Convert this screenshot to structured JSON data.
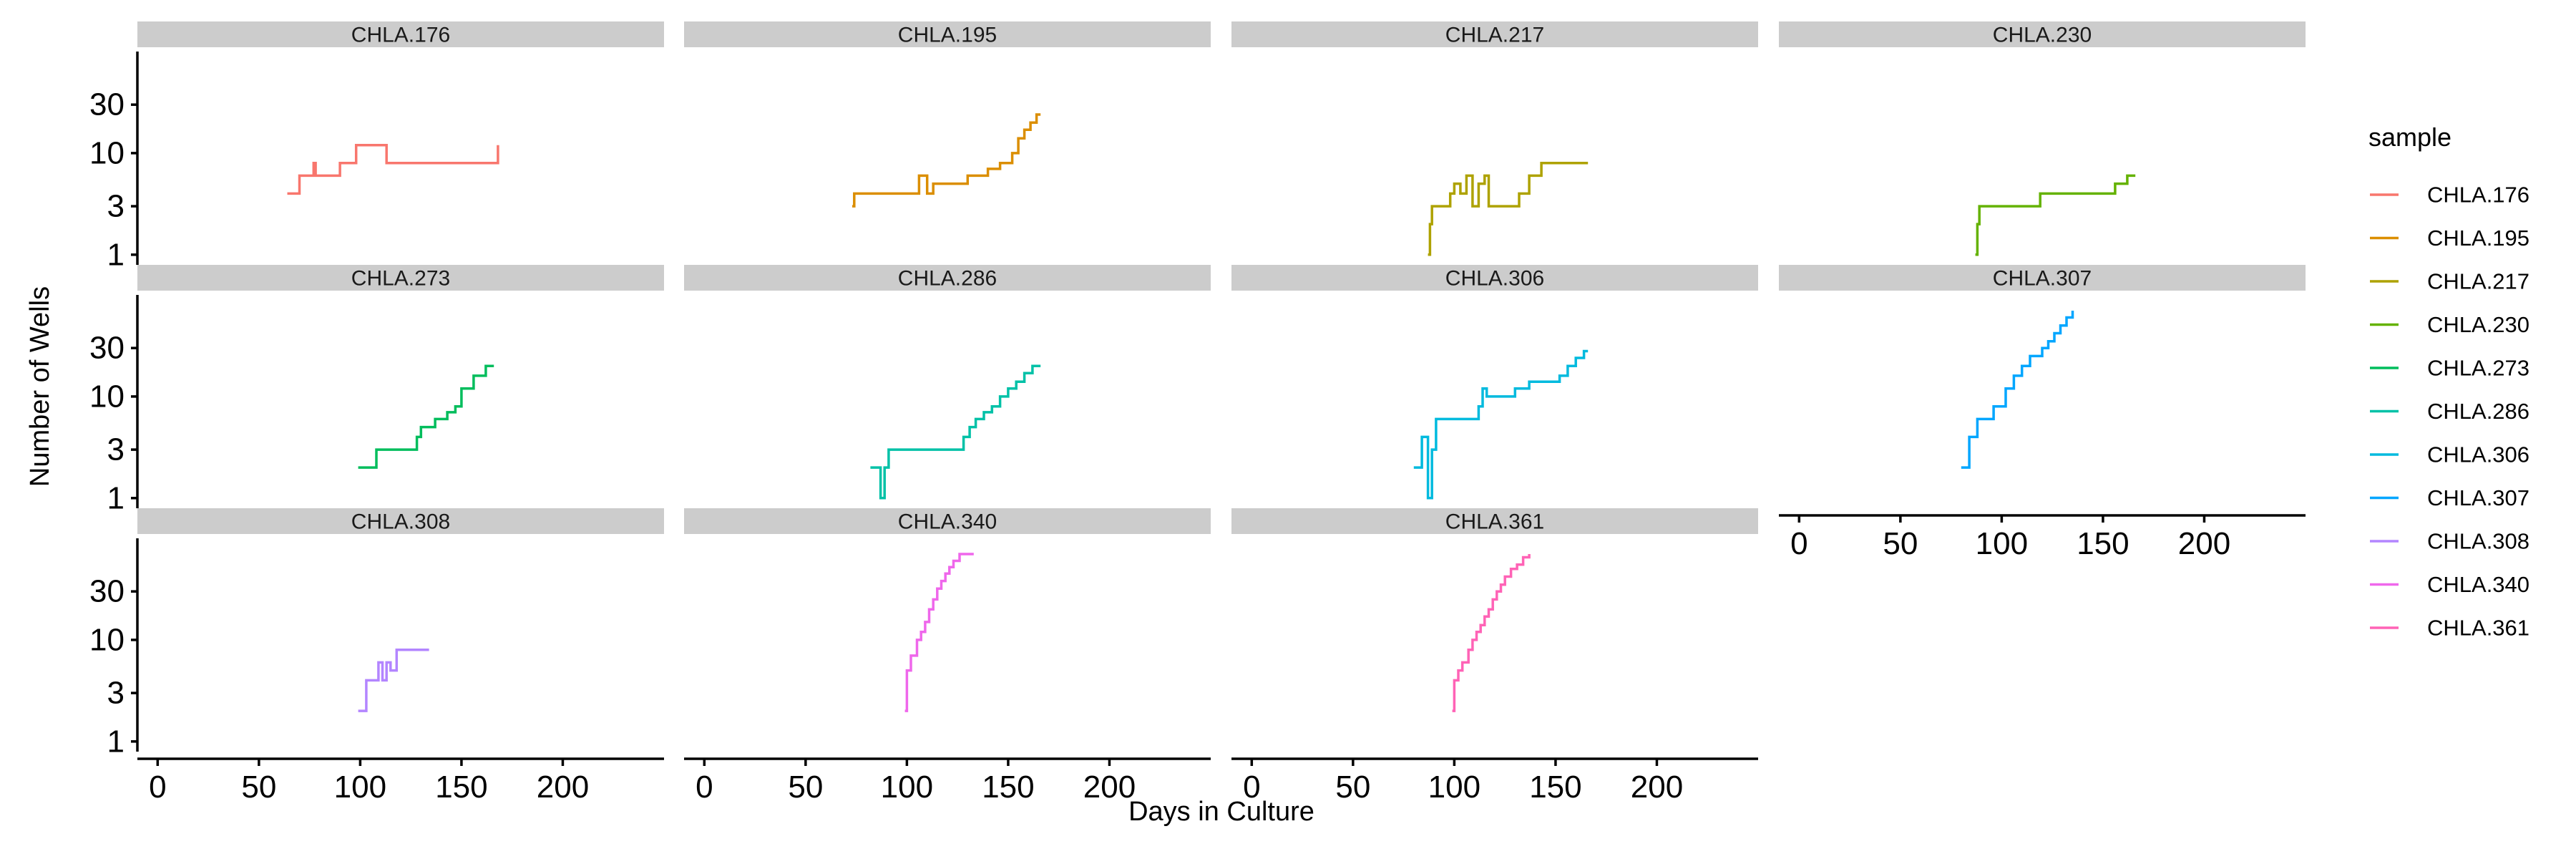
{
  "chart_data": {
    "type": "line",
    "xlabel": "Days in Culture",
    "ylabel": "Number of Wells",
    "xlim": [
      -10,
      250
    ],
    "x_ticks": [
      0,
      50,
      100,
      150,
      200
    ],
    "x_tick_labels": [
      "0",
      "50",
      "100",
      "150",
      "200"
    ],
    "y_scale": "log10",
    "ylim_log10": [
      -0.1,
      2.0
    ],
    "y_ticks": [
      1,
      3,
      10,
      30
    ],
    "y_tick_labels": [
      "1",
      "3",
      "10",
      "30"
    ],
    "grid": false,
    "facets": {
      "columns": 4,
      "rows": 3
    },
    "legend": {
      "title": "sample",
      "position": "right",
      "entries": [
        "CHLA.176",
        "CHLA.195",
        "CHLA.217",
        "CHLA.230",
        "CHLA.273",
        "CHLA.286",
        "CHLA.306",
        "CHLA.307",
        "CHLA.308",
        "CHLA.340",
        "CHLA.361"
      ]
    },
    "series": [
      {
        "name": "CHLA.176",
        "color": "#F8766D",
        "facet_index": 0,
        "points": [
          [
            64,
            4
          ],
          [
            70,
            4
          ],
          [
            70,
            6
          ],
          [
            77,
            6
          ],
          [
            77,
            8
          ],
          [
            78,
            8
          ],
          [
            78,
            6
          ],
          [
            90,
            6
          ],
          [
            90,
            8
          ],
          [
            98,
            8
          ],
          [
            98,
            12
          ],
          [
            113,
            12
          ],
          [
            113,
            8
          ],
          [
            168,
            8
          ],
          [
            168,
            12
          ]
        ]
      },
      {
        "name": "CHLA.195",
        "color": "#DB8E00",
        "facet_index": 1,
        "points": [
          [
            73,
            3
          ],
          [
            74,
            3
          ],
          [
            74,
            4
          ],
          [
            106,
            4
          ],
          [
            106,
            6
          ],
          [
            110,
            6
          ],
          [
            110,
            4
          ],
          [
            113,
            4
          ],
          [
            113,
            5
          ],
          [
            130,
            5
          ],
          [
            130,
            6
          ],
          [
            140,
            6
          ],
          [
            140,
            7
          ],
          [
            146,
            7
          ],
          [
            146,
            8
          ],
          [
            152,
            8
          ],
          [
            152,
            10
          ],
          [
            155,
            10
          ],
          [
            155,
            14
          ],
          [
            158,
            14
          ],
          [
            158,
            17
          ],
          [
            161,
            17
          ],
          [
            161,
            20
          ],
          [
            164,
            20
          ],
          [
            164,
            24
          ],
          [
            166,
            24
          ]
        ]
      },
      {
        "name": "CHLA.217",
        "color": "#AEA200",
        "facet_index": 2,
        "points": [
          [
            87,
            1
          ],
          [
            88,
            1
          ],
          [
            88,
            2
          ],
          [
            89,
            2
          ],
          [
            89,
            3
          ],
          [
            98,
            3
          ],
          [
            98,
            4
          ],
          [
            100,
            4
          ],
          [
            100,
            5
          ],
          [
            103,
            5
          ],
          [
            103,
            4
          ],
          [
            106,
            4
          ],
          [
            106,
            6
          ],
          [
            109,
            6
          ],
          [
            109,
            3
          ],
          [
            112,
            3
          ],
          [
            112,
            5
          ],
          [
            115,
            5
          ],
          [
            115,
            6
          ],
          [
            117,
            6
          ],
          [
            117,
            3
          ],
          [
            132,
            3
          ],
          [
            132,
            4
          ],
          [
            137,
            4
          ],
          [
            137,
            6
          ],
          [
            143,
            6
          ],
          [
            143,
            8
          ],
          [
            166,
            8
          ]
        ]
      },
      {
        "name": "CHLA.230",
        "color": "#64B200",
        "facet_index": 3,
        "points": [
          [
            87,
            1
          ],
          [
            88,
            1
          ],
          [
            88,
            2
          ],
          [
            89,
            2
          ],
          [
            89,
            3
          ],
          [
            119,
            3
          ],
          [
            119,
            4
          ],
          [
            156,
            4
          ],
          [
            156,
            5
          ],
          [
            162,
            5
          ],
          [
            162,
            6
          ],
          [
            166,
            6
          ]
        ]
      },
      {
        "name": "CHLA.273",
        "color": "#00BD5C",
        "facet_index": 4,
        "points": [
          [
            99,
            2
          ],
          [
            108,
            2
          ],
          [
            108,
            3
          ],
          [
            128,
            3
          ],
          [
            128,
            4
          ],
          [
            130,
            4
          ],
          [
            130,
            5
          ],
          [
            137,
            5
          ],
          [
            137,
            6
          ],
          [
            143,
            6
          ],
          [
            143,
            7
          ],
          [
            147,
            7
          ],
          [
            147,
            8
          ],
          [
            150,
            8
          ],
          [
            150,
            12
          ],
          [
            156,
            12
          ],
          [
            156,
            16
          ],
          [
            162,
            16
          ],
          [
            162,
            20
          ],
          [
            166,
            20
          ]
        ]
      },
      {
        "name": "CHLA.286",
        "color": "#00C1A7",
        "facet_index": 5,
        "points": [
          [
            82,
            2
          ],
          [
            87,
            2
          ],
          [
            87,
            1
          ],
          [
            89,
            1
          ],
          [
            89,
            2
          ],
          [
            91,
            2
          ],
          [
            91,
            3
          ],
          [
            128,
            3
          ],
          [
            128,
            4
          ],
          [
            131,
            4
          ],
          [
            131,
            5
          ],
          [
            134,
            5
          ],
          [
            134,
            6
          ],
          [
            138,
            6
          ],
          [
            138,
            7
          ],
          [
            142,
            7
          ],
          [
            142,
            8
          ],
          [
            146,
            8
          ],
          [
            146,
            10
          ],
          [
            150,
            10
          ],
          [
            150,
            12
          ],
          [
            154,
            12
          ],
          [
            154,
            14
          ],
          [
            158,
            14
          ],
          [
            158,
            17
          ],
          [
            162,
            17
          ],
          [
            162,
            20
          ],
          [
            166,
            20
          ]
        ]
      },
      {
        "name": "CHLA.306",
        "color": "#00BADE",
        "facet_index": 6,
        "points": [
          [
            80,
            2
          ],
          [
            84,
            2
          ],
          [
            84,
            4
          ],
          [
            87,
            4
          ],
          [
            87,
            1
          ],
          [
            89,
            1
          ],
          [
            89,
            3
          ],
          [
            91,
            3
          ],
          [
            91,
            6
          ],
          [
            112,
            6
          ],
          [
            112,
            8
          ],
          [
            114,
            8
          ],
          [
            114,
            12
          ],
          [
            116,
            12
          ],
          [
            116,
            10
          ],
          [
            130,
            10
          ],
          [
            130,
            12
          ],
          [
            137,
            12
          ],
          [
            137,
            14
          ],
          [
            152,
            14
          ],
          [
            152,
            16
          ],
          [
            156,
            16
          ],
          [
            156,
            20
          ],
          [
            160,
            20
          ],
          [
            160,
            24
          ],
          [
            164,
            24
          ],
          [
            164,
            28
          ],
          [
            166,
            28
          ]
        ]
      },
      {
        "name": "CHLA.307",
        "color": "#00A6FF",
        "facet_index": 7,
        "points": [
          [
            80,
            2
          ],
          [
            84,
            2
          ],
          [
            84,
            4
          ],
          [
            88,
            4
          ],
          [
            88,
            6
          ],
          [
            96,
            6
          ],
          [
            96,
            8
          ],
          [
            102,
            8
          ],
          [
            102,
            12
          ],
          [
            106,
            12
          ],
          [
            106,
            16
          ],
          [
            110,
            16
          ],
          [
            110,
            20
          ],
          [
            114,
            20
          ],
          [
            114,
            25
          ],
          [
            120,
            25
          ],
          [
            120,
            30
          ],
          [
            123,
            30
          ],
          [
            123,
            35
          ],
          [
            126,
            35
          ],
          [
            126,
            42
          ],
          [
            129,
            42
          ],
          [
            129,
            50
          ],
          [
            132,
            50
          ],
          [
            132,
            60
          ],
          [
            135,
            60
          ],
          [
            135,
            70
          ]
        ]
      },
      {
        "name": "CHLA.308",
        "color": "#B385FF",
        "facet_index": 8,
        "points": [
          [
            99,
            2
          ],
          [
            103,
            2
          ],
          [
            103,
            4
          ],
          [
            109,
            4
          ],
          [
            109,
            6
          ],
          [
            111,
            6
          ],
          [
            111,
            4
          ],
          [
            113,
            4
          ],
          [
            113,
            6
          ],
          [
            115,
            6
          ],
          [
            115,
            5
          ],
          [
            118,
            5
          ],
          [
            118,
            8
          ],
          [
            134,
            8
          ]
        ]
      },
      {
        "name": "CHLA.340",
        "color": "#EF67EB",
        "facet_index": 9,
        "points": [
          [
            99,
            2
          ],
          [
            100,
            2
          ],
          [
            100,
            5
          ],
          [
            102,
            5
          ],
          [
            102,
            7
          ],
          [
            105,
            7
          ],
          [
            105,
            10
          ],
          [
            107,
            10
          ],
          [
            107,
            12
          ],
          [
            109,
            12
          ],
          [
            109,
            15
          ],
          [
            111,
            15
          ],
          [
            111,
            20
          ],
          [
            113,
            20
          ],
          [
            113,
            25
          ],
          [
            115,
            25
          ],
          [
            115,
            32
          ],
          [
            117,
            32
          ],
          [
            117,
            38
          ],
          [
            119,
            38
          ],
          [
            119,
            45
          ],
          [
            121,
            45
          ],
          [
            121,
            52
          ],
          [
            123,
            52
          ],
          [
            123,
            60
          ],
          [
            126,
            60
          ],
          [
            126,
            70
          ],
          [
            133,
            70
          ]
        ]
      },
      {
        "name": "CHLA.361",
        "color": "#FF63B6",
        "facet_index": 10,
        "points": [
          [
            99,
            2
          ],
          [
            100,
            2
          ],
          [
            100,
            4
          ],
          [
            102,
            4
          ],
          [
            102,
            5
          ],
          [
            104,
            5
          ],
          [
            104,
            6
          ],
          [
            107,
            6
          ],
          [
            107,
            8
          ],
          [
            109,
            8
          ],
          [
            109,
            10
          ],
          [
            111,
            10
          ],
          [
            111,
            12
          ],
          [
            113,
            12
          ],
          [
            113,
            14
          ],
          [
            115,
            14
          ],
          [
            115,
            17
          ],
          [
            117,
            17
          ],
          [
            117,
            20
          ],
          [
            119,
            20
          ],
          [
            119,
            25
          ],
          [
            121,
            25
          ],
          [
            121,
            30
          ],
          [
            123,
            30
          ],
          [
            123,
            35
          ],
          [
            125,
            35
          ],
          [
            125,
            42
          ],
          [
            128,
            42
          ],
          [
            128,
            50
          ],
          [
            131,
            50
          ],
          [
            131,
            55
          ],
          [
            134,
            55
          ],
          [
            134,
            65
          ],
          [
            137,
            65
          ],
          [
            137,
            70
          ]
        ]
      }
    ],
    "facet_labels": [
      "CHLA.176",
      "CHLA.195",
      "CHLA.217",
      "CHLA.230",
      "CHLA.273",
      "CHLA.286",
      "CHLA.306",
      "CHLA.307",
      "CHLA.308",
      "CHLA.340",
      "CHLA.361"
    ]
  }
}
